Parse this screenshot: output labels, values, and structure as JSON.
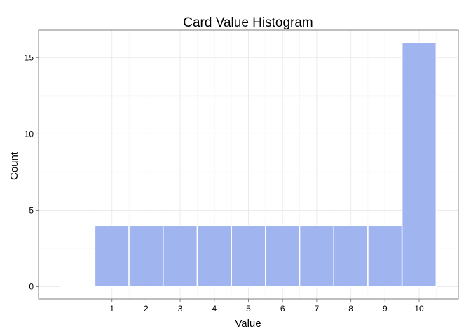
{
  "chart_data": {
    "type": "bar",
    "title": "Card Value Histogram",
    "xlabel": "Value",
    "ylabel": "Count",
    "categories": [
      "1",
      "2",
      "3",
      "4",
      "5",
      "6",
      "7",
      "8",
      "9",
      "10"
    ],
    "x": [
      1,
      2,
      3,
      4,
      5,
      6,
      7,
      8,
      9,
      10
    ],
    "values": [
      4,
      4,
      4,
      4,
      4,
      4,
      4,
      4,
      4,
      16
    ],
    "xlim": [
      -1.15,
      11.15
    ],
    "ylim": [
      -0.8,
      16.8
    ],
    "yticks": [
      0,
      5,
      10,
      15
    ],
    "grid": true,
    "legend": "none",
    "colors": {
      "bar_fill": "#a0b4f0",
      "bar_outline": "#ffffff"
    }
  }
}
